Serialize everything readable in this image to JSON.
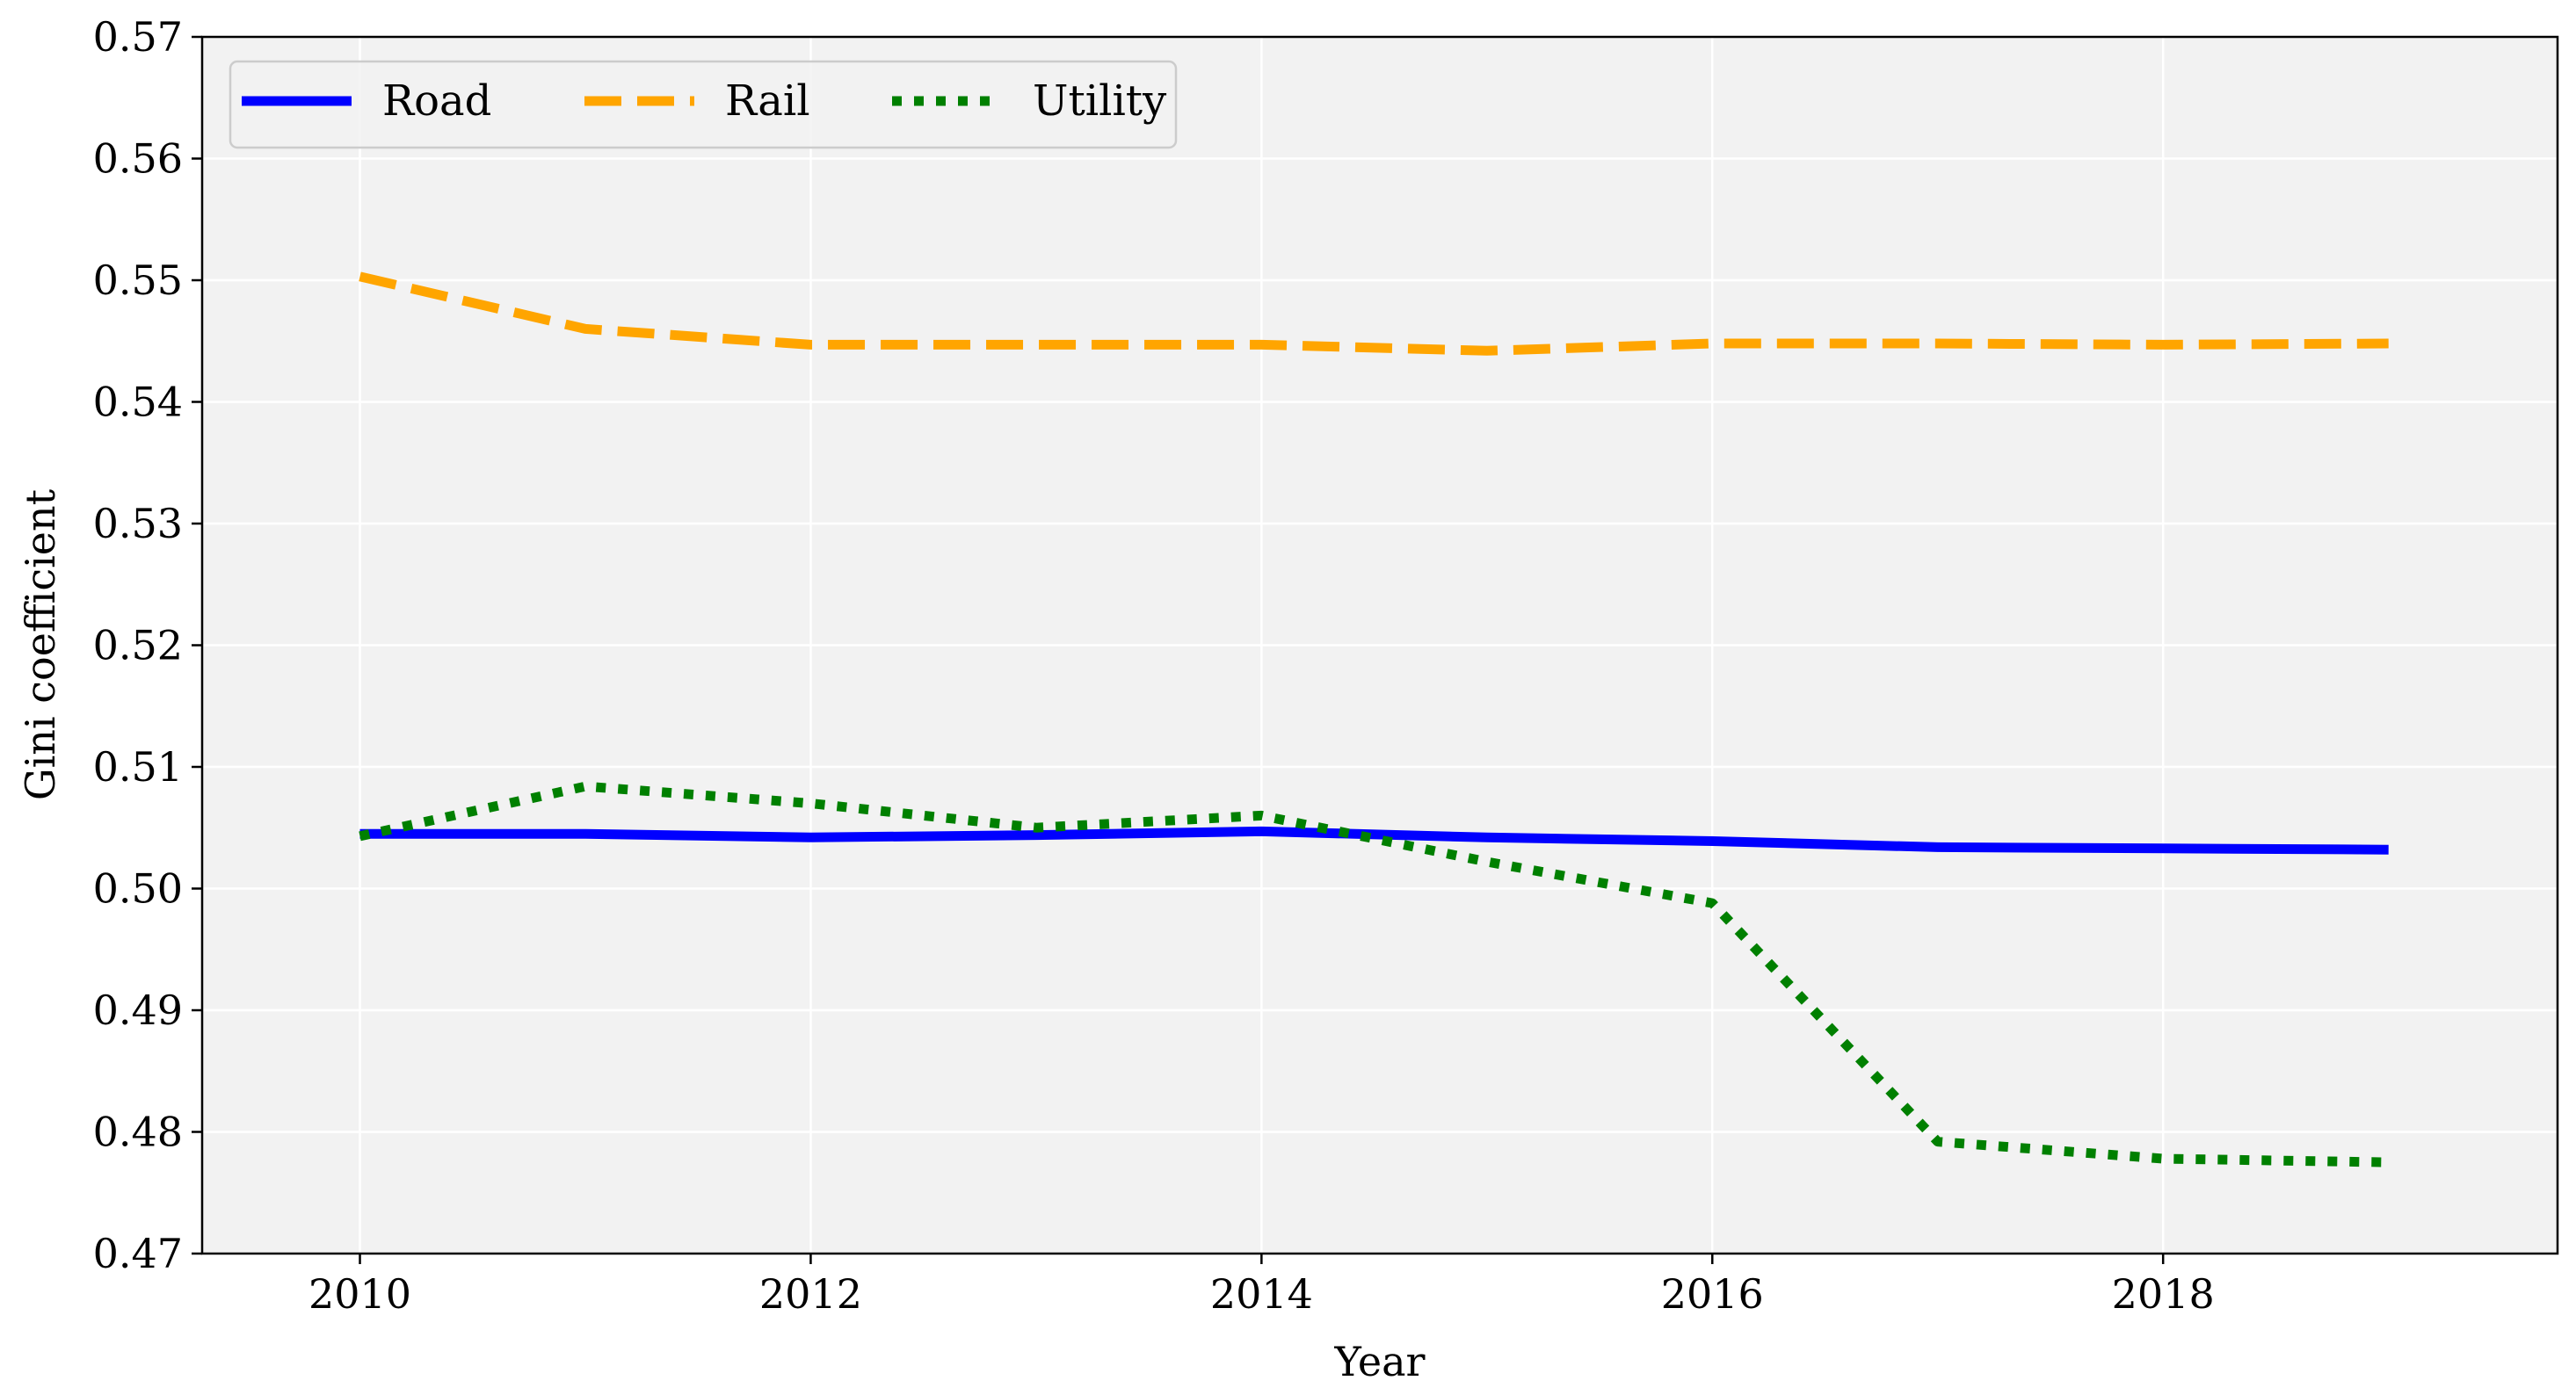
{
  "chart_data": {
    "type": "line",
    "title": "",
    "xlabel": "Year",
    "ylabel": "Gini coefficient",
    "xlim": [
      2009.3,
      2019.75
    ],
    "ylim": [
      0.47,
      0.57
    ],
    "xticks": [
      2010,
      2012,
      2014,
      2016,
      2018
    ],
    "yticks": [
      0.47,
      0.48,
      0.49,
      0.5,
      0.51,
      0.52,
      0.53,
      0.54,
      0.55,
      0.56,
      0.57
    ],
    "ytick_labels": [
      "0.47",
      "0.48",
      "0.49",
      "0.50",
      "0.51",
      "0.52",
      "0.53",
      "0.54",
      "0.55",
      "0.56",
      "0.57"
    ],
    "grid": true,
    "legend_position": "top-left",
    "x": [
      2010,
      2011,
      2012,
      2013,
      2014,
      2015,
      2016,
      2017,
      2018,
      2019
    ],
    "series": [
      {
        "name": "Road",
        "color": "#0000ff",
        "style": "solid",
        "values": [
          0.5045,
          0.5045,
          0.5042,
          0.5044,
          0.5047,
          0.5042,
          0.5039,
          0.5034,
          0.5033,
          0.5032
        ]
      },
      {
        "name": "Rail",
        "color": "#ffa500",
        "style": "dashed",
        "values": [
          0.5503,
          0.546,
          0.5447,
          0.5447,
          0.5447,
          0.5442,
          0.5448,
          0.5448,
          0.5447,
          0.5448
        ]
      },
      {
        "name": "Utility",
        "color": "#008000",
        "style": "dotted",
        "values": [
          0.5043,
          0.5084,
          0.507,
          0.505,
          0.506,
          0.5022,
          0.4988,
          0.4792,
          0.4778,
          0.4775
        ]
      }
    ],
    "colors": {
      "plot_background": "#f2f2f2",
      "grid": "#ffffff"
    }
  }
}
